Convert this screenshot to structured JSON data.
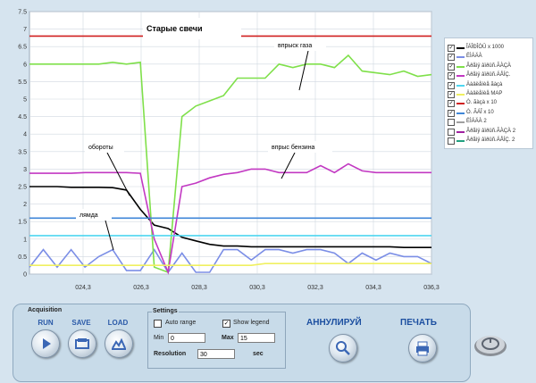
{
  "chart_data": {
    "type": "line",
    "y_ticks": [
      "0",
      "0.5",
      "1",
      "1.5",
      "2",
      "2.5",
      "3",
      "3.5",
      "4",
      "4.5",
      "5",
      "5.5",
      "6",
      "6.5",
      "7",
      "7.5"
    ],
    "x_ticks": [
      "024,3",
      "026,3",
      "028,3",
      "030,3",
      "032,3",
      "034,3",
      "036,3"
    ],
    "ylim": [
      0,
      7.5
    ],
    "annotations": [
      "Старые свечи",
      "впрыск газа",
      "обороты",
      "впрыс бензина",
      "лямда"
    ],
    "grid": true,
    "series": [
      {
        "name": "ÎÁÎÐÎÒÛ x 1000",
        "color": "#000000",
        "values": [
          2.5,
          2.5,
          2.5,
          2.48,
          2.48,
          2.48,
          2.47,
          2.4,
          1.85,
          1.4,
          1.3,
          1.05,
          0.95,
          0.85,
          0.8,
          0.8,
          0.78,
          0.78,
          0.78,
          0.78,
          0.78,
          0.78,
          0.78,
          0.78,
          0.78,
          0.78,
          0.78,
          0.76,
          0.76,
          0.76
        ]
      },
      {
        "name": "ËÌÁÄÀ",
        "color": "#7b8ee6",
        "values": [
          0.2,
          0.7,
          0.2,
          0.7,
          0.2,
          0.5,
          0.7,
          0.1,
          0.1,
          0.7,
          0.05,
          0.6,
          0.05,
          0.05,
          0.7,
          0.7,
          0.4,
          0.7,
          0.7,
          0.6,
          0.7,
          0.7,
          0.6,
          0.3,
          0.6,
          0.4,
          0.6,
          0.5,
          0.5,
          0.3
        ]
      },
      {
        "name": "Âðåìÿ âïðûñ.ÃÀÇÀ",
        "color": "#7fe04a",
        "values": [
          6.0,
          6.0,
          6.0,
          6.0,
          6.0,
          6.0,
          6.05,
          6.0,
          6.05,
          0.2,
          0.05,
          4.5,
          4.8,
          4.95,
          5.1,
          5.6,
          5.6,
          5.6,
          6.0,
          5.9,
          6.0,
          6.0,
          5.9,
          6.25,
          5.8,
          5.75,
          5.7,
          5.8,
          5.65,
          5.7
        ]
      },
      {
        "name": "Âðåìÿ âïðûñ.ÁÅÍÇ.",
        "color": "#c238c2",
        "values": [
          2.88,
          2.88,
          2.88,
          2.88,
          2.9,
          2.9,
          2.9,
          2.9,
          2.88,
          1.0,
          0.05,
          2.5,
          2.6,
          2.75,
          2.85,
          2.9,
          3.0,
          3.0,
          2.9,
          2.9,
          2.9,
          3.1,
          2.9,
          3.15,
          2.95,
          2.9,
          2.9,
          2.9,
          2.9,
          2.9
        ]
      },
      {
        "name": "Äàâëåíèå ãàçà",
        "color": "#4fd6f0",
        "values": [
          1.1,
          1.1,
          1.1,
          1.1,
          1.1,
          1.1,
          1.1,
          1.1,
          1.1,
          1.1,
          1.1,
          1.1,
          1.1,
          1.1,
          1.1,
          1.1,
          1.1,
          1.1,
          1.1,
          1.1,
          1.1,
          1.1,
          1.1,
          1.1,
          1.1,
          1.1,
          1.1,
          1.1,
          1.1,
          1.1
        ]
      },
      {
        "name": "Äàâëåíèå MAP",
        "color": "#f0f060",
        "values": [
          0.25,
          0.25,
          0.25,
          0.25,
          0.25,
          0.25,
          0.25,
          0.25,
          0.25,
          0.25,
          0.25,
          0.25,
          0.25,
          0.25,
          0.25,
          0.25,
          0.25,
          0.3,
          0.3,
          0.3,
          0.3,
          0.3,
          0.3,
          0.3,
          0.3,
          0.3,
          0.3,
          0.3,
          0.3,
          0.3
        ]
      },
      {
        "name": "Ò. ãàçà x 10",
        "color": "#d02020",
        "values": [
          6.8,
          6.8,
          6.8,
          6.8,
          6.8,
          6.8,
          6.8,
          6.8,
          6.8,
          6.8,
          6.8,
          6.8,
          6.8,
          6.8,
          6.8,
          6.8,
          6.8,
          6.8,
          6.8,
          6.8,
          6.8,
          6.8,
          6.8,
          6.8,
          6.8,
          6.8,
          6.8,
          6.8,
          6.8,
          6.8
        ]
      },
      {
        "name": "Ò. ÃÁÎ x 10",
        "color": "#3f86d8",
        "values": [
          1.6,
          1.6,
          1.6,
          1.6,
          1.6,
          1.6,
          1.6,
          1.6,
          1.6,
          1.6,
          1.6,
          1.6,
          1.6,
          1.6,
          1.6,
          1.6,
          1.6,
          1.6,
          1.6,
          1.6,
          1.6,
          1.6,
          1.6,
          1.6,
          1.6,
          1.6,
          1.6,
          1.6,
          1.6,
          1.6
        ]
      },
      {
        "name": "ËÌÁÄÀ 2",
        "color": "#a0a0a0",
        "values": []
      },
      {
        "name": "Âðåìÿ âïðûñ.ÃÀÇÀ 2",
        "color": "#a020a0",
        "values": []
      },
      {
        "name": "Âðåìÿ âïðûñ.ÁÅÍÇ. 2",
        "color": "#20a080",
        "values": []
      }
    ],
    "checked": [
      true,
      true,
      true,
      true,
      true,
      true,
      true,
      true,
      false,
      false,
      false
    ]
  },
  "acquisition": {
    "title": "Acquisition",
    "run": "RUN",
    "save": "SAVE",
    "load": "LOAD"
  },
  "settings": {
    "title": "Settings",
    "auto_range": "Auto range",
    "auto_range_checked": false,
    "show_legend": "Show legend",
    "show_legend_checked": true,
    "min_label": "Min",
    "min_value": "0",
    "max_label": "Max",
    "max_value": "15",
    "resolution_label": "Resolution",
    "resolution_value": "30",
    "resolution_unit": "sec"
  },
  "actions": {
    "cancel": "АННУЛИРУЙ",
    "print": "ПЕЧАТЬ"
  },
  "colors": {
    "accent": "#1c4fa0",
    "panel": "#c8dbe9"
  }
}
